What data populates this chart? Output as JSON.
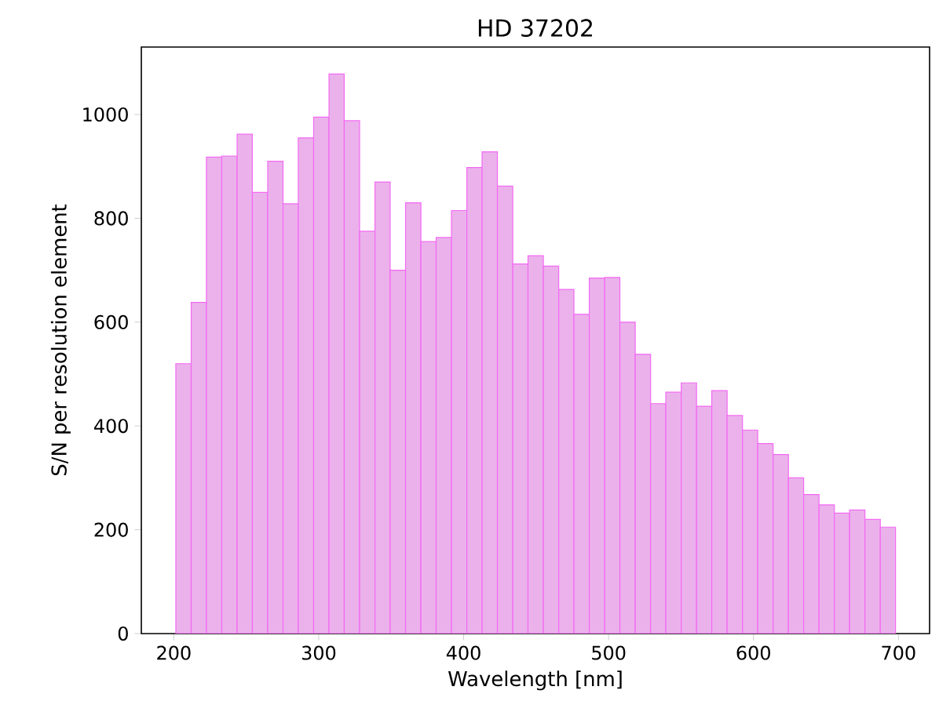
{
  "chart_data": {
    "type": "histogram",
    "title": "HD 37202",
    "xlabel": "Wavelength [nm]",
    "ylabel": "S/N per resolution element",
    "bins": [
      201.4,
      212.0,
      222.5,
      233.1,
      243.7,
      254.2,
      264.8,
      275.4,
      285.9,
      296.5,
      307.1,
      317.6,
      328.2,
      338.8,
      349.3,
      359.9,
      370.5,
      381.0,
      391.6,
      402.2,
      412.7,
      423.3,
      433.9,
      444.4,
      455.0,
      465.6,
      476.1,
      486.7,
      497.3,
      507.8,
      518.4,
      529.0,
      539.5,
      550.1,
      560.7,
      571.2,
      581.8,
      592.4,
      602.9,
      613.5,
      624.1,
      634.6,
      645.2,
      655.8,
      666.3,
      676.9,
      687.5,
      698.0
    ],
    "values": [
      520,
      638,
      918,
      920,
      962,
      850,
      910,
      828,
      955,
      995,
      1078,
      988,
      775,
      870,
      700,
      830,
      755,
      763,
      815,
      898,
      928,
      862,
      712,
      728,
      708,
      663,
      615,
      685,
      686,
      600,
      538,
      443,
      465,
      483,
      438,
      468,
      420,
      392,
      366,
      345,
      300,
      268,
      248,
      232,
      238,
      220,
      205
    ],
    "color": "#ebb1eb",
    "xlim": [
      177.6,
      721.5
    ],
    "ylim": [
      0,
      1130
    ],
    "xticks": [
      200,
      300,
      400,
      500,
      600,
      700
    ],
    "yticks": [
      0,
      200,
      400,
      600,
      800,
      1000
    ]
  }
}
